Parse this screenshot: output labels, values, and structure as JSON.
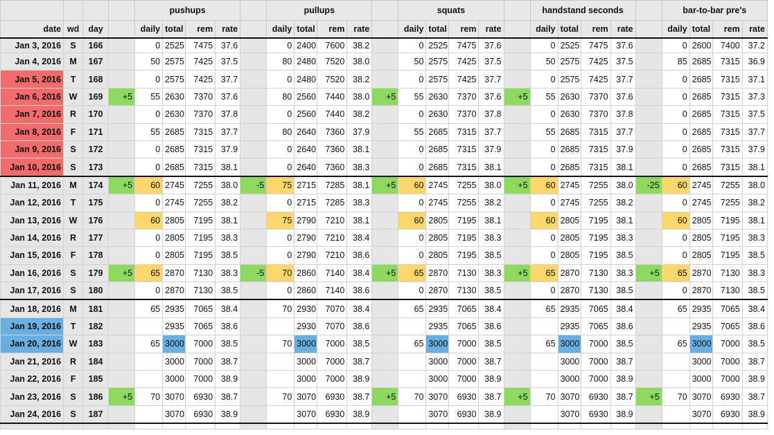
{
  "colors": {
    "past": "#f16b6b",
    "today": "#69aee0",
    "adjustment": "#8dd85e",
    "increase": "#fbd66b"
  },
  "headers": {
    "date": "date",
    "wd": "wd",
    "day": "day",
    "daily": "daily",
    "total": "total",
    "rem": "rem",
    "rate": "rate"
  },
  "exercises": [
    "pushups",
    "pullups",
    "squats",
    "handstand seconds",
    "bar-to-bar pre's"
  ],
  "rows": [
    {
      "date": "Jan 3, 2016",
      "wd": "S",
      "day": "166",
      "ex": [
        [
          "",
          "0",
          "2525",
          "7475",
          "37.6"
        ],
        [
          "",
          "0",
          "2400",
          "7600",
          "38.2"
        ],
        [
          "",
          "0",
          "2525",
          "7475",
          "37.6"
        ],
        [
          "",
          "0",
          "2525",
          "7475",
          "37.6"
        ],
        [
          "",
          "0",
          "2600",
          "7400",
          "37.2"
        ]
      ]
    },
    {
      "date": "Jan 4, 2016",
      "wd": "M",
      "day": "167",
      "ex": [
        [
          "",
          "50",
          "2575",
          "7425",
          "37.5"
        ],
        [
          "",
          "80",
          "2480",
          "7520",
          "38.0"
        ],
        [
          "",
          "50",
          "2575",
          "7425",
          "37.5"
        ],
        [
          "",
          "50",
          "2575",
          "7425",
          "37.5"
        ],
        [
          "",
          "85",
          "2685",
          "7315",
          "36.9"
        ]
      ]
    },
    {
      "date": "Jan 5, 2016",
      "wd": "T",
      "day": "168",
      "hl": "red",
      "ex": [
        [
          "",
          "0",
          "2575",
          "7425",
          "37.7"
        ],
        [
          "",
          "0",
          "2480",
          "7520",
          "38.2"
        ],
        [
          "",
          "0",
          "2575",
          "7425",
          "37.7"
        ],
        [
          "",
          "0",
          "2575",
          "7425",
          "37.7"
        ],
        [
          "",
          "0",
          "2685",
          "7315",
          "37.1"
        ]
      ]
    },
    {
      "date": "Jan 6, 2016",
      "wd": "W",
      "day": "169",
      "hl": "red",
      "ex": [
        [
          "+5",
          "55",
          "2630",
          "7370",
          "37.6"
        ],
        [
          "",
          "80",
          "2560",
          "7440",
          "38.0"
        ],
        [
          "+5",
          "55",
          "2630",
          "7370",
          "37.6"
        ],
        [
          "+5",
          "55",
          "2630",
          "7370",
          "37.6"
        ],
        [
          "",
          "0",
          "2685",
          "7315",
          "37.3"
        ]
      ]
    },
    {
      "date": "Jan 7, 2016",
      "wd": "R",
      "day": "170",
      "hl": "red",
      "ex": [
        [
          "",
          "0",
          "2630",
          "7370",
          "37.8"
        ],
        [
          "",
          "0",
          "2560",
          "7440",
          "38.2"
        ],
        [
          "",
          "0",
          "2630",
          "7370",
          "37.8"
        ],
        [
          "",
          "0",
          "2630",
          "7370",
          "37.8"
        ],
        [
          "",
          "0",
          "2685",
          "7315",
          "37.5"
        ]
      ]
    },
    {
      "date": "Jan 8, 2016",
      "wd": "F",
      "day": "171",
      "hl": "red",
      "ex": [
        [
          "",
          "55",
          "2685",
          "7315",
          "37.7"
        ],
        [
          "",
          "80",
          "2640",
          "7360",
          "37.9"
        ],
        [
          "",
          "55",
          "2685",
          "7315",
          "37.7"
        ],
        [
          "",
          "55",
          "2685",
          "7315",
          "37.7"
        ],
        [
          "",
          "0",
          "2685",
          "7315",
          "37.7"
        ]
      ]
    },
    {
      "date": "Jan 9, 2016",
      "wd": "S",
      "day": "172",
      "hl": "red",
      "ex": [
        [
          "",
          "0",
          "2685",
          "7315",
          "37.9"
        ],
        [
          "",
          "0",
          "2640",
          "7360",
          "38.1"
        ],
        [
          "",
          "0",
          "2685",
          "7315",
          "37.9"
        ],
        [
          "",
          "0",
          "2685",
          "7315",
          "37.9"
        ],
        [
          "",
          "0",
          "2685",
          "7315",
          "37.9"
        ]
      ]
    },
    {
      "date": "Jan 10, 2016",
      "wd": "S",
      "day": "173",
      "hl": "red",
      "ex": [
        [
          "",
          "0",
          "2685",
          "7315",
          "38.1"
        ],
        [
          "",
          "0",
          "2640",
          "7360",
          "38.3"
        ],
        [
          "",
          "0",
          "2685",
          "7315",
          "38.1"
        ],
        [
          "",
          "0",
          "2685",
          "7315",
          "38.1"
        ],
        [
          "",
          "0",
          "2685",
          "7315",
          "38.1"
        ]
      ]
    },
    {
      "date": "Jan 11, 2016",
      "wd": "M",
      "day": "174",
      "wk": true,
      "ex": [
        [
          "+5",
          "60",
          "2745",
          "7255",
          "38.0"
        ],
        [
          "-5",
          "75",
          "2715",
          "7285",
          "38.1"
        ],
        [
          "+5",
          "60",
          "2745",
          "7255",
          "38.0"
        ],
        [
          "+5",
          "60",
          "2745",
          "7255",
          "38.0"
        ],
        [
          "-25",
          "60",
          "2745",
          "7255",
          "38.0"
        ]
      ]
    },
    {
      "date": "Jan 12, 2016",
      "wd": "T",
      "day": "175",
      "ex": [
        [
          "",
          "0",
          "2745",
          "7255",
          "38.2"
        ],
        [
          "",
          "0",
          "2715",
          "7285",
          "38.3"
        ],
        [
          "",
          "0",
          "2745",
          "7255",
          "38.2"
        ],
        [
          "",
          "0",
          "2745",
          "7255",
          "38.2"
        ],
        [
          "",
          "0",
          "2745",
          "7255",
          "38.2"
        ]
      ]
    },
    {
      "date": "Jan 13, 2016",
      "wd": "W",
      "day": "176",
      "ex": [
        [
          "",
          "60",
          "2805",
          "7195",
          "38.1"
        ],
        [
          "",
          "75",
          "2790",
          "7210",
          "38.1"
        ],
        [
          "",
          "60",
          "2805",
          "7195",
          "38.1"
        ],
        [
          "",
          "60",
          "2805",
          "7195",
          "38.1"
        ],
        [
          "",
          "60",
          "2805",
          "7195",
          "38.1"
        ]
      ]
    },
    {
      "date": "Jan 14, 2016",
      "wd": "R",
      "day": "177",
      "ex": [
        [
          "",
          "0",
          "2805",
          "7195",
          "38.3"
        ],
        [
          "",
          "0",
          "2790",
          "7210",
          "38.4"
        ],
        [
          "",
          "0",
          "2805",
          "7195",
          "38.3"
        ],
        [
          "",
          "0",
          "2805",
          "7195",
          "38.3"
        ],
        [
          "",
          "0",
          "2805",
          "7195",
          "38.3"
        ]
      ]
    },
    {
      "date": "Jan 15, 2016",
      "wd": "F",
      "day": "178",
      "ex": [
        [
          "",
          "0",
          "2805",
          "7195",
          "38.5"
        ],
        [
          "",
          "0",
          "2790",
          "7210",
          "38.6"
        ],
        [
          "",
          "0",
          "2805",
          "7195",
          "38.5"
        ],
        [
          "",
          "0",
          "2805",
          "7195",
          "38.5"
        ],
        [
          "",
          "0",
          "2805",
          "7195",
          "38.5"
        ]
      ]
    },
    {
      "date": "Jan 16, 2016",
      "wd": "S",
      "day": "179",
      "ex": [
        [
          "+5",
          "65",
          "2870",
          "7130",
          "38.3"
        ],
        [
          "-5",
          "70",
          "2860",
          "7140",
          "38.4"
        ],
        [
          "+5",
          "65",
          "2870",
          "7130",
          "38.3"
        ],
        [
          "+5",
          "65",
          "2870",
          "7130",
          "38.3"
        ],
        [
          "+5",
          "65",
          "2870",
          "7130",
          "38.3"
        ]
      ]
    },
    {
      "date": "Jan 17, 2016",
      "wd": "S",
      "day": "180",
      "ex": [
        [
          "",
          "0",
          "2870",
          "7130",
          "38.5"
        ],
        [
          "",
          "0",
          "2860",
          "7140",
          "38.6"
        ],
        [
          "",
          "0",
          "2870",
          "7130",
          "38.5"
        ],
        [
          "",
          "0",
          "2870",
          "7130",
          "38.5"
        ],
        [
          "",
          "0",
          "2870",
          "7130",
          "38.5"
        ]
      ]
    },
    {
      "date": "Jan 18, 2016",
      "wd": "M",
      "day": "181",
      "wk": true,
      "ex": [
        [
          "",
          "65",
          "2935",
          "7065",
          "38.4"
        ],
        [
          "",
          "70",
          "2930",
          "7070",
          "38.4"
        ],
        [
          "",
          "65",
          "2935",
          "7065",
          "38.4"
        ],
        [
          "",
          "65",
          "2935",
          "7065",
          "38.4"
        ],
        [
          "",
          "65",
          "2935",
          "7065",
          "38.4"
        ]
      ]
    },
    {
      "date": "Jan 19, 2016",
      "wd": "T",
      "day": "182",
      "hl": "blue",
      "ex": [
        [
          "",
          "",
          "2935",
          "7065",
          "38.6"
        ],
        [
          "",
          "",
          "2930",
          "7070",
          "38.6"
        ],
        [
          "",
          "",
          "2935",
          "7065",
          "38.6"
        ],
        [
          "",
          "",
          "2935",
          "7065",
          "38.6"
        ],
        [
          "",
          "",
          "2935",
          "7065",
          "38.6"
        ]
      ]
    },
    {
      "date": "Jan 20, 2016",
      "wd": "W",
      "day": "183",
      "hl": "blue",
      "ex": [
        [
          "",
          "65",
          "3000",
          "7000",
          "38.5"
        ],
        [
          "",
          "70",
          "3000",
          "7000",
          "38.5"
        ],
        [
          "",
          "65",
          "3000",
          "7000",
          "38.5"
        ],
        [
          "",
          "65",
          "3000",
          "7000",
          "38.5"
        ],
        [
          "",
          "65",
          "3000",
          "7000",
          "38.5"
        ]
      ]
    },
    {
      "date": "Jan 21, 2016",
      "wd": "R",
      "day": "184",
      "ex": [
        [
          "",
          "",
          "3000",
          "7000",
          "38.7"
        ],
        [
          "",
          "",
          "3000",
          "7000",
          "38.7"
        ],
        [
          "",
          "",
          "3000",
          "7000",
          "38.7"
        ],
        [
          "",
          "",
          "3000",
          "7000",
          "38.7"
        ],
        [
          "",
          "",
          "3000",
          "7000",
          "38.7"
        ]
      ]
    },
    {
      "date": "Jan 22, 2016",
      "wd": "F",
      "day": "185",
      "ex": [
        [
          "",
          "",
          "3000",
          "7000",
          "38.9"
        ],
        [
          "",
          "",
          "3000",
          "7000",
          "38.9"
        ],
        [
          "",
          "",
          "3000",
          "7000",
          "38.9"
        ],
        [
          "",
          "",
          "3000",
          "7000",
          "38.9"
        ],
        [
          "",
          "",
          "3000",
          "7000",
          "38.9"
        ]
      ]
    },
    {
      "date": "Jan 23, 2016",
      "wd": "S",
      "day": "186",
      "ex": [
        [
          "+5",
          "70",
          "3070",
          "6930",
          "38.7"
        ],
        [
          "",
          "70",
          "3070",
          "6930",
          "38.7"
        ],
        [
          "+5",
          "70",
          "3070",
          "6930",
          "38.7"
        ],
        [
          "+5",
          "70",
          "3070",
          "6930",
          "38.7"
        ],
        [
          "+5",
          "70",
          "3070",
          "6930",
          "38.7"
        ]
      ]
    },
    {
      "date": "Jan 24, 2016",
      "wd": "S",
      "day": "187",
      "last": true,
      "ex": [
        [
          "",
          "",
          "3070",
          "6930",
          "38.9"
        ],
        [
          "",
          "",
          "3070",
          "6930",
          "38.9"
        ],
        [
          "",
          "",
          "3070",
          "6930",
          "38.9"
        ],
        [
          "",
          "",
          "3070",
          "6930",
          "38.9"
        ],
        [
          "",
          "",
          "3070",
          "6930",
          "38.9"
        ]
      ]
    }
  ]
}
